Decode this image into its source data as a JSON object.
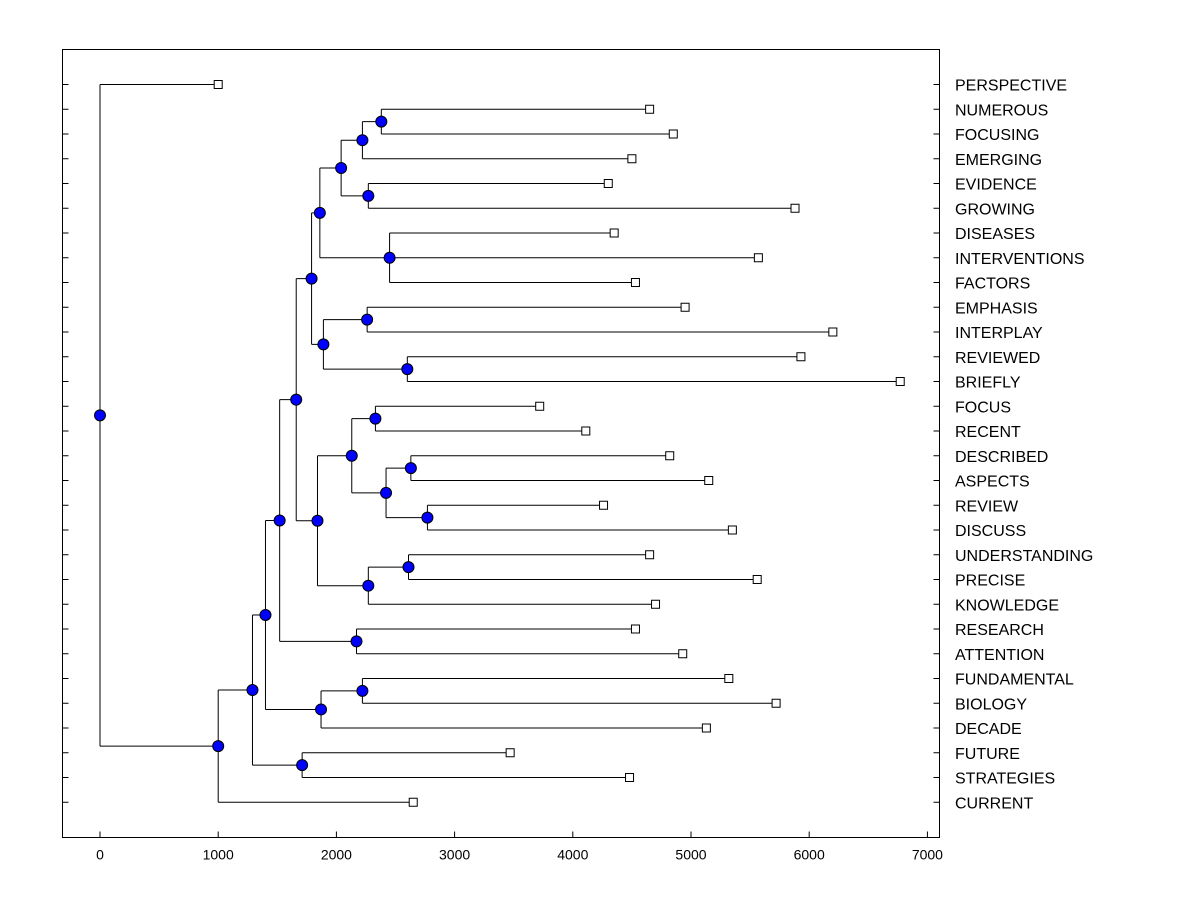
{
  "chart_data": {
    "type": "dendrogram",
    "title": "",
    "xlabel": "",
    "ylabel": "",
    "xlim": [
      -330,
      7100
    ],
    "xticks": [
      0,
      1000,
      2000,
      3000,
      4000,
      5000,
      6000,
      7000
    ],
    "grid": false,
    "colors": {
      "node": "#0000ff",
      "line": "#000000",
      "leaf": "#ffffff"
    },
    "leaves": [
      {
        "id": "L0",
        "label": "PERSPECTIVE",
        "x": 1000
      },
      {
        "id": "L1",
        "label": "NUMEROUS",
        "x": 4650
      },
      {
        "id": "L2",
        "label": "FOCUSING",
        "x": 4850
      },
      {
        "id": "L3",
        "label": "EMERGING",
        "x": 4500
      },
      {
        "id": "L4",
        "label": "EVIDENCE",
        "x": 4300
      },
      {
        "id": "L5",
        "label": "GROWING",
        "x": 5880
      },
      {
        "id": "L6",
        "label": "DISEASES",
        "x": 4350
      },
      {
        "id": "L7",
        "label": "INTERVENTIONS",
        "x": 5570
      },
      {
        "id": "L8",
        "label": "FACTORS",
        "x": 4530
      },
      {
        "id": "L9",
        "label": "EMPHASIS",
        "x": 4950
      },
      {
        "id": "L10",
        "label": "INTERPLAY",
        "x": 6200
      },
      {
        "id": "L11",
        "label": "REVIEWED",
        "x": 5930
      },
      {
        "id": "L12",
        "label": "BRIEFLY",
        "x": 6770
      },
      {
        "id": "L13",
        "label": "FOCUS",
        "x": 3720
      },
      {
        "id": "L14",
        "label": "RECENT",
        "x": 4110
      },
      {
        "id": "L15",
        "label": "DESCRIBED",
        "x": 4820
      },
      {
        "id": "L16",
        "label": "ASPECTS",
        "x": 5150
      },
      {
        "id": "L17",
        "label": "REVIEW",
        "x": 4260
      },
      {
        "id": "L18",
        "label": "DISCUSS",
        "x": 5350
      },
      {
        "id": "L19",
        "label": "UNDERSTANDING",
        "x": 4650
      },
      {
        "id": "L20",
        "label": "PRECISE",
        "x": 5560
      },
      {
        "id": "L21",
        "label": "KNOWLEDGE",
        "x": 4700
      },
      {
        "id": "L22",
        "label": "RESEARCH",
        "x": 4530
      },
      {
        "id": "L23",
        "label": "ATTENTION",
        "x": 4930
      },
      {
        "id": "L24",
        "label": "FUNDAMENTAL",
        "x": 5320
      },
      {
        "id": "L25",
        "label": "BIOLOGY",
        "x": 5720
      },
      {
        "id": "L26",
        "label": "DECADE",
        "x": 5130
      },
      {
        "id": "L27",
        "label": "FUTURE",
        "x": 3470
      },
      {
        "id": "L28",
        "label": "STRATEGIES",
        "x": 4480
      },
      {
        "id": "L29",
        "label": "CURRENT",
        "x": 2650
      }
    ],
    "nodes": [
      {
        "id": "N1",
        "x": 2380,
        "children": [
          "L1",
          "L2"
        ]
      },
      {
        "id": "N2",
        "x": 2220,
        "children": [
          "N1",
          "L3"
        ]
      },
      {
        "id": "N3",
        "x": 2270,
        "children": [
          "L4",
          "L5"
        ]
      },
      {
        "id": "N4",
        "x": 2040,
        "children": [
          "N2",
          "N3"
        ]
      },
      {
        "id": "N5",
        "x": 2450,
        "children": [
          "L6",
          "L7",
          "L8"
        ]
      },
      {
        "id": "N6",
        "x": 1860,
        "children": [
          "N4",
          "N5"
        ]
      },
      {
        "id": "N7",
        "x": 2260,
        "children": [
          "L9",
          "L10"
        ]
      },
      {
        "id": "N8",
        "x": 2600,
        "children": [
          "L11",
          "L12"
        ]
      },
      {
        "id": "N9",
        "x": 1890,
        "children": [
          "N7",
          "N8"
        ]
      },
      {
        "id": "N10",
        "x": 1790,
        "children": [
          "N6",
          "N9"
        ]
      },
      {
        "id": "N11",
        "x": 2330,
        "children": [
          "L13",
          "L14"
        ]
      },
      {
        "id": "N12",
        "x": 2630,
        "children": [
          "L15",
          "L16"
        ]
      },
      {
        "id": "N13",
        "x": 2770,
        "children": [
          "L17",
          "L18"
        ]
      },
      {
        "id": "N14",
        "x": 2420,
        "children": [
          "N12",
          "N13"
        ]
      },
      {
        "id": "N15",
        "x": 2130,
        "children": [
          "N11",
          "N14"
        ]
      },
      {
        "id": "N16",
        "x": 2610,
        "children": [
          "L19",
          "L20"
        ]
      },
      {
        "id": "N17",
        "x": 2270,
        "children": [
          "N16",
          "L21"
        ]
      },
      {
        "id": "N18",
        "x": 1840,
        "children": [
          "N15",
          "N17"
        ]
      },
      {
        "id": "N19",
        "x": 1660,
        "children": [
          "N10",
          "N18"
        ]
      },
      {
        "id": "N20",
        "x": 2170,
        "children": [
          "L22",
          "L23"
        ]
      },
      {
        "id": "N21",
        "x": 1520,
        "children": [
          "N19",
          "N20"
        ]
      },
      {
        "id": "N22",
        "x": 2220,
        "children": [
          "L24",
          "L25"
        ]
      },
      {
        "id": "N23",
        "x": 1870,
        "children": [
          "N22",
          "L26"
        ]
      },
      {
        "id": "N24",
        "x": 1400,
        "children": [
          "N21",
          "N23"
        ]
      },
      {
        "id": "N25",
        "x": 1710,
        "children": [
          "L27",
          "L28"
        ]
      },
      {
        "id": "N26",
        "x": 1290,
        "children": [
          "N24",
          "N25"
        ]
      },
      {
        "id": "N27",
        "x": 1000,
        "children": [
          "N26",
          "L29"
        ]
      },
      {
        "id": "N28",
        "x": 0,
        "children": [
          "L0",
          "N27"
        ]
      }
    ]
  }
}
